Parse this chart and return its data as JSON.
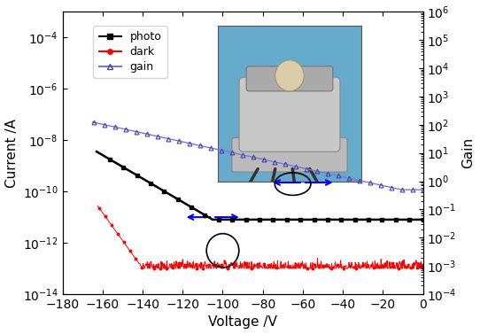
{
  "xlim": [
    -180,
    0
  ],
  "ylim_left": [
    1e-14,
    0.001
  ],
  "ylim_right": [
    0.0001,
    1000000.0
  ],
  "xlabel": "Voltage /V",
  "ylabel_left": "Current /A",
  "ylabel_right": "Gain",
  "xticks": [
    -180,
    -160,
    -140,
    -120,
    -100,
    -80,
    -60,
    -40,
    -20,
    0
  ],
  "photo_color": "black",
  "dark_color": "red",
  "gain_color": "#7777dd",
  "gain_edge_color": "#4444aa",
  "arrow_color": "blue",
  "ellipse_color": "black",
  "inset_bg": "#55aacc",
  "legend_fontsize": 9,
  "axis_fontsize": 11
}
